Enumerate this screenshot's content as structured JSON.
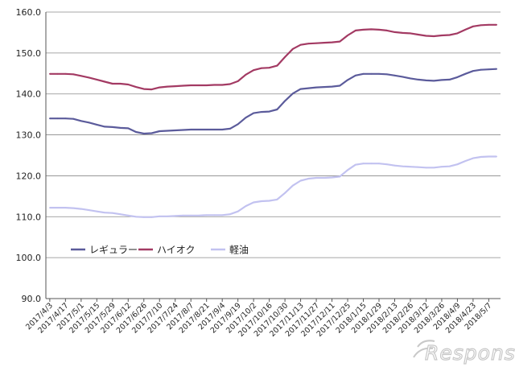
{
  "chart_data": {
    "type": "line",
    "title": "",
    "xlabel": "",
    "ylabel": "",
    "ylim": [
      90,
      160
    ],
    "yticks": [
      "90.0",
      "100.0",
      "110.0",
      "120.0",
      "130.0",
      "140.0",
      "150.0",
      "160.0"
    ],
    "grid": true,
    "legend_position": "middle-left",
    "x": [
      "2017/4/3",
      "2017/4/10",
      "2017/4/17",
      "2017/4/24",
      "2017/5/1",
      "2017/5/8",
      "2017/5/15",
      "2017/5/22",
      "2017/5/29",
      "2017/6/5",
      "2017/6/12",
      "2017/6/19",
      "2017/6/26",
      "2017/7/3",
      "2017/7/10",
      "2017/7/17",
      "2017/7/24",
      "2017/7/31",
      "2017/8/7",
      "2017/8/14",
      "2017/8/21",
      "2017/8/28",
      "2017/9/4",
      "2017/9/11",
      "2017/9/19",
      "2017/9/25",
      "2017/10/2",
      "2017/10/9",
      "2017/10/16",
      "2017/10/23",
      "2017/10/30",
      "2017/11/6",
      "2017/11/13",
      "2017/11/20",
      "2017/11/27",
      "2017/12/4",
      "2017/12/11",
      "2017/12/18",
      "2017/12/25",
      "2018/1/9",
      "2018/1/15",
      "2018/1/22",
      "2018/1/29",
      "2018/2/5",
      "2018/2/13",
      "2018/2/19",
      "2018/2/26",
      "2018/3/5",
      "2018/3/12",
      "2018/3/19",
      "2018/3/26",
      "2018/4/2",
      "2018/4/9",
      "2018/4/16",
      "2018/4/23",
      "2018/5/1",
      "2018/5/7",
      "2018/5/14"
    ],
    "x_tick_labels": [
      "2017/4/3",
      "2017/4/17",
      "2017/5/1",
      "2017/5/15",
      "2017/5/29",
      "2017/6/12",
      "2017/6/26",
      "2017/7/10",
      "2017/7/24",
      "2017/8/7",
      "2017/8/21",
      "2017/9/4",
      "2017/9/19",
      "2017/10/2",
      "2017/10/16",
      "2017/10/30",
      "2017/11/13",
      "2017/11/27",
      "2017/12/11",
      "2017/12/25",
      "2018/1/15",
      "2018/1/29",
      "2018/2/13",
      "2018/2/26",
      "2018/3/12",
      "2018/3/26",
      "2018/4/9",
      "2018/4/23",
      "2018/5/7"
    ],
    "series": [
      {
        "name": "レギュラー",
        "color": "#5b5b9b",
        "values": [
          134.0,
          134.0,
          134.0,
          133.9,
          133.4,
          133.0,
          132.5,
          132.0,
          131.9,
          131.7,
          131.6,
          130.7,
          130.3,
          130.4,
          130.9,
          131.0,
          131.1,
          131.2,
          131.3,
          131.3,
          131.3,
          131.3,
          131.3,
          131.5,
          132.6,
          134.2,
          135.3,
          135.6,
          135.7,
          136.2,
          138.3,
          140.1,
          141.2,
          141.4,
          141.6,
          141.7,
          141.8,
          142.0,
          143.4,
          144.5,
          144.9,
          144.9,
          144.9,
          144.8,
          144.5,
          144.2,
          143.8,
          143.5,
          143.3,
          143.2,
          143.4,
          143.5,
          144.1,
          144.9,
          145.6,
          145.9,
          146.0,
          146.1
        ]
      },
      {
        "name": "ハイオク",
        "color": "#a33a63",
        "values": [
          144.9,
          144.9,
          144.9,
          144.8,
          144.4,
          144.0,
          143.5,
          143.0,
          142.5,
          142.5,
          142.3,
          141.7,
          141.2,
          141.1,
          141.6,
          141.8,
          141.9,
          142.0,
          142.1,
          142.1,
          142.1,
          142.2,
          142.2,
          142.4,
          143.1,
          144.7,
          145.8,
          146.3,
          146.4,
          146.9,
          149.0,
          151.0,
          152.0,
          152.3,
          152.4,
          152.5,
          152.6,
          152.8,
          154.3,
          155.5,
          155.7,
          155.8,
          155.7,
          155.5,
          155.1,
          154.9,
          154.8,
          154.5,
          154.2,
          154.1,
          154.3,
          154.4,
          154.8,
          155.7,
          156.5,
          156.8,
          156.9,
          156.9
        ]
      },
      {
        "name": "軽油",
        "color": "#c2c2f0",
        "values": [
          112.2,
          112.2,
          112.2,
          112.1,
          111.9,
          111.6,
          111.3,
          111.0,
          110.9,
          110.6,
          110.3,
          110.0,
          109.9,
          109.9,
          110.1,
          110.1,
          110.2,
          110.3,
          110.3,
          110.3,
          110.4,
          110.4,
          110.4,
          110.6,
          111.3,
          112.6,
          113.5,
          113.8,
          113.9,
          114.2,
          115.8,
          117.6,
          118.8,
          119.3,
          119.5,
          119.5,
          119.6,
          119.8,
          121.4,
          122.7,
          123.0,
          123.0,
          123.0,
          122.8,
          122.5,
          122.3,
          122.2,
          122.1,
          122.0,
          122.0,
          122.2,
          122.3,
          122.8,
          123.6,
          124.3,
          124.6,
          124.7,
          124.7
        ]
      }
    ]
  },
  "watermark": "Response."
}
